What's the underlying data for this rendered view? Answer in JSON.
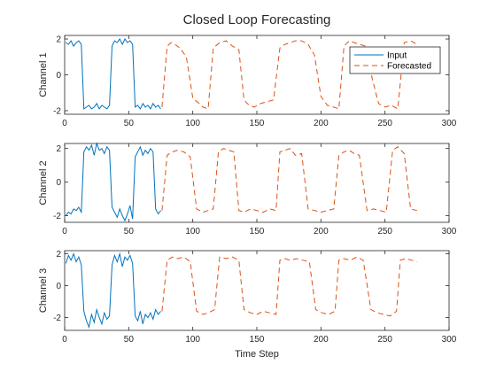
{
  "figure": {
    "title": "Closed Loop Forecasting",
    "xlabel": "Time Step"
  },
  "colors": {
    "input": "#0072BD",
    "forecast": "#D95319",
    "axis": "#262626",
    "background": "#ffffff"
  },
  "chart_data": [
    {
      "type": "line",
      "title": "",
      "xlabel": "",
      "ylabel": "Channel 1",
      "xlim": [
        0,
        300
      ],
      "ylim": [
        -2.2,
        2.2
      ],
      "xticks": [
        0,
        50,
        100,
        150,
        200,
        250,
        300
      ],
      "yticks": [
        -2,
        0,
        2
      ],
      "grid": false,
      "legend": {
        "position": "top-right",
        "entries": [
          "Input",
          "Forecasted"
        ]
      },
      "series": [
        {
          "name": "Input",
          "style": "solid",
          "x": [
            1,
            3,
            5,
            7,
            9,
            11,
            13,
            15,
            17,
            19,
            21,
            23,
            25,
            27,
            29,
            31,
            33,
            35,
            37,
            39,
            41,
            43,
            45,
            47,
            49,
            51,
            53,
            55,
            57,
            59,
            61,
            63,
            65,
            67,
            69,
            71,
            73,
            75
          ],
          "y": [
            1.8,
            1.7,
            1.9,
            1.6,
            1.8,
            1.9,
            1.7,
            -1.9,
            -1.8,
            -1.7,
            -1.9,
            -1.8,
            -1.6,
            -1.9,
            -1.7,
            -1.8,
            -1.9,
            -1.7,
            1.6,
            1.9,
            1.8,
            2.0,
            1.7,
            2.0,
            1.8,
            1.9,
            1.7,
            -1.8,
            -1.7,
            -1.9,
            -1.6,
            -1.8,
            -1.7,
            -1.9,
            -1.6,
            -1.8,
            -1.7,
            -1.9
          ]
        },
        {
          "name": "Forecasted",
          "style": "dashed",
          "x": [
            76,
            80,
            83,
            86,
            90,
            95,
            100,
            105,
            108,
            112,
            116,
            121,
            126,
            131,
            136,
            140,
            144,
            148,
            153,
            158,
            163,
            168,
            172,
            176,
            180,
            185,
            190,
            195,
            200,
            205,
            210,
            214,
            218,
            222,
            226,
            230,
            235,
            240,
            245,
            250,
            255,
            260,
            265,
            270,
            275
          ],
          "y": [
            -1.8,
            1.6,
            1.8,
            1.7,
            1.5,
            1.0,
            -1.3,
            -1.6,
            -1.8,
            -1.9,
            1.5,
            1.8,
            1.9,
            1.6,
            1.4,
            -1.4,
            -1.7,
            -1.8,
            -1.6,
            -1.5,
            -1.4,
            1.5,
            1.7,
            1.8,
            1.9,
            1.9,
            1.7,
            1.1,
            -1.2,
            -1.7,
            -1.8,
            -1.9,
            1.6,
            1.9,
            1.8,
            1.7,
            1.6,
            -0.2,
            -1.6,
            -1.8,
            -1.7,
            -1.9,
            1.8,
            1.9,
            1.7
          ]
        }
      ]
    },
    {
      "type": "line",
      "title": "",
      "xlabel": "",
      "ylabel": "Channel 2",
      "xlim": [
        0,
        300
      ],
      "ylim": [
        -2.4,
        2.3
      ],
      "xticks": [
        0,
        50,
        100,
        150,
        200,
        250,
        300
      ],
      "yticks": [
        -2,
        0,
        2
      ],
      "grid": false,
      "series": [
        {
          "name": "Input",
          "style": "solid",
          "x": [
            1,
            3,
            5,
            7,
            9,
            11,
            13,
            15,
            17,
            19,
            21,
            23,
            25,
            27,
            29,
            31,
            33,
            35,
            37,
            39,
            41,
            43,
            45,
            47,
            49,
            51,
            53,
            55,
            57,
            59,
            61,
            63,
            65,
            67,
            69,
            71,
            73,
            75
          ],
          "y": [
            -2.0,
            -1.8,
            -1.9,
            -1.6,
            -1.7,
            -1.5,
            -1.8,
            1.8,
            2.1,
            1.9,
            2.2,
            1.6,
            2.3,
            1.9,
            2.0,
            1.7,
            2.1,
            1.9,
            -1.5,
            -1.8,
            -2.1,
            -1.6,
            -2.0,
            -2.3,
            -1.9,
            -1.4,
            -2.2,
            1.5,
            1.8,
            2.1,
            1.6,
            1.9,
            1.7,
            2.0,
            1.8,
            -1.6,
            -1.9,
            -1.7
          ]
        },
        {
          "name": "Forecasted",
          "style": "dashed",
          "x": [
            76,
            80,
            84,
            88,
            93,
            98,
            103,
            108,
            112,
            116,
            120,
            124,
            128,
            132,
            136,
            140,
            145,
            150,
            155,
            160,
            165,
            168,
            172,
            176,
            180,
            185,
            190,
            195,
            200,
            205,
            210,
            214,
            218,
            222,
            226,
            230,
            236,
            241,
            246,
            251,
            256,
            260,
            265,
            270,
            275
          ],
          "y": [
            -1.7,
            1.6,
            1.8,
            1.9,
            1.8,
            1.5,
            -1.6,
            -1.8,
            -1.7,
            -1.6,
            1.8,
            2.0,
            1.9,
            1.8,
            -1.7,
            -1.8,
            -1.6,
            -1.7,
            -1.8,
            -1.6,
            -1.7,
            1.8,
            1.9,
            2.0,
            1.6,
            1.7,
            -1.6,
            -1.7,
            -1.8,
            -1.7,
            -1.6,
            1.6,
            1.8,
            1.9,
            1.7,
            1.6,
            -1.7,
            -1.6,
            -1.7,
            -1.8,
            1.9,
            2.1,
            1.7,
            -1.6,
            -1.7
          ]
        }
      ]
    },
    {
      "type": "line",
      "title": "",
      "xlabel": "Time Step",
      "ylabel": "Channel 3",
      "xlim": [
        0,
        300
      ],
      "ylim": [
        -2.8,
        2.2
      ],
      "xticks": [
        0,
        50,
        100,
        150,
        200,
        250,
        300
      ],
      "yticks": [
        -2,
        0,
        2
      ],
      "grid": false,
      "series": [
        {
          "name": "Input",
          "style": "solid",
          "x": [
            1,
            3,
            5,
            7,
            9,
            11,
            13,
            15,
            17,
            19,
            21,
            23,
            25,
            27,
            29,
            31,
            33,
            35,
            37,
            39,
            41,
            43,
            45,
            47,
            49,
            51,
            53,
            55,
            57,
            59,
            61,
            63,
            65,
            67,
            69,
            71,
            73,
            75
          ],
          "y": [
            1.4,
            1.9,
            1.6,
            2.0,
            1.5,
            1.8,
            1.3,
            -1.6,
            -2.2,
            -2.6,
            -1.8,
            -2.3,
            -1.5,
            -2.0,
            -2.4,
            -1.7,
            -2.1,
            -1.9,
            1.3,
            1.9,
            1.5,
            2.0,
            1.2,
            1.8,
            1.6,
            1.9,
            1.4,
            -1.9,
            -2.2,
            -1.6,
            -2.4,
            -1.8,
            -2.0,
            -1.7,
            -2.1,
            -1.5,
            -1.8,
            -1.6
          ]
        },
        {
          "name": "Forecasted",
          "style": "dashed",
          "x": [
            76,
            80,
            84,
            88,
            93,
            98,
            103,
            108,
            112,
            117,
            121,
            126,
            131,
            136,
            140,
            145,
            150,
            155,
            160,
            165,
            168,
            172,
            176,
            181,
            186,
            191,
            196,
            201,
            206,
            211,
            214,
            218,
            223,
            228,
            233,
            239,
            244,
            249,
            254,
            259,
            262,
            266,
            271,
            275
          ],
          "y": [
            -1.6,
            1.6,
            1.8,
            1.7,
            1.8,
            1.5,
            -1.6,
            -1.8,
            -1.7,
            -1.5,
            1.8,
            1.7,
            1.8,
            1.6,
            -1.5,
            -1.7,
            -1.8,
            -1.6,
            -1.7,
            -1.8,
            1.6,
            1.7,
            1.6,
            1.7,
            1.6,
            1.5,
            -1.5,
            -1.7,
            -1.8,
            -1.6,
            1.6,
            1.7,
            1.6,
            1.8,
            1.6,
            -1.5,
            -1.7,
            -1.8,
            -1.9,
            -1.6,
            1.6,
            1.7,
            1.6,
            1.5
          ]
        }
      ]
    }
  ]
}
